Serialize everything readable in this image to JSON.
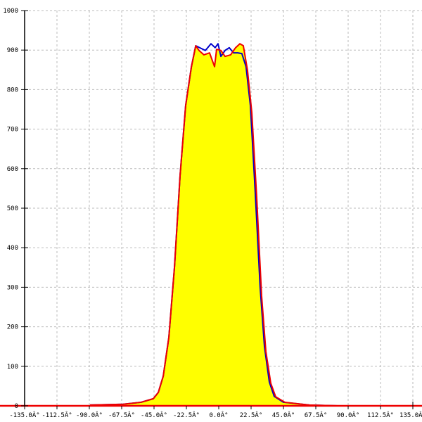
{
  "chart_data": {
    "type": "area",
    "title": "",
    "xlabel": "",
    "ylabel": "",
    "xlim": [
      -135,
      135
    ],
    "ylim": [
      0,
      1000
    ],
    "grid": true,
    "x_ticks": [
      -135,
      -112.5,
      -90,
      -67.5,
      -45,
      -22.5,
      0,
      22.5,
      45,
      67.5,
      90,
      112.5,
      135
    ],
    "x_tick_labels": [
      "-135.0Â°",
      "-112.5Â°",
      "-90.0Â°",
      "-67.5Â°",
      "-45.0Â°",
      "-22.5Â°",
      "0.0Â°",
      "22.5Â°",
      "45.0Â°",
      "67.5Â°",
      "90.0Â°",
      "112.5Â°",
      "135.0Â°"
    ],
    "y_ticks": [
      0,
      100,
      200,
      300,
      400,
      500,
      600,
      700,
      800,
      900,
      1000
    ],
    "y_tick_labels": [
      "0",
      "100",
      "200",
      "300",
      "400",
      "500",
      "600",
      "700",
      "800",
      "900",
      "1000"
    ],
    "fill_color": "#ffff00",
    "series": [
      {
        "color": "#0000cc",
        "x": [
          -89.5,
          -66.5,
          -54,
          -45.5,
          -42,
          -38.6,
          -34.7,
          -30.8,
          -26.9,
          -23,
          -19,
          -16,
          -12.7,
          -9.3,
          -5.4,
          -2.5,
          -0.5,
          1.5,
          4.4,
          7.3,
          10.3,
          13.2,
          16.1,
          19,
          22,
          25.3,
          28.8,
          31.8,
          35.2,
          38.6,
          45,
          63,
          82.7
        ],
        "y": [
          2,
          4,
          9,
          18,
          34,
          75,
          173,
          350,
          582,
          760,
          858,
          911,
          905,
          899,
          916,
          906,
          916,
          884,
          899,
          906,
          893,
          893,
          891,
          858,
          760,
          546,
          300,
          150,
          60,
          24,
          9,
          2,
          0
        ]
      },
      {
        "color": "#ee0000",
        "x": [
          -89.5,
          -66.5,
          -54,
          -45.5,
          -42,
          -38.6,
          -34.7,
          -30.8,
          -26.9,
          -23,
          -19,
          -16,
          -13.7,
          -10.3,
          -6.4,
          -2.9,
          -1.5,
          1.5,
          4.4,
          8.3,
          11.7,
          14.7,
          17.1,
          20,
          23,
          26.4,
          29.8,
          32.8,
          36.2,
          39.6,
          46,
          63,
          82.7
        ],
        "y": [
          2,
          4,
          9,
          18,
          34,
          75,
          173,
          350,
          582,
          760,
          858,
          911,
          899,
          888,
          893,
          858,
          902,
          899,
          884,
          888,
          906,
          916,
          911,
          849,
          742,
          528,
          279,
          137,
          57,
          23,
          9,
          2,
          0
        ]
      }
    ]
  }
}
